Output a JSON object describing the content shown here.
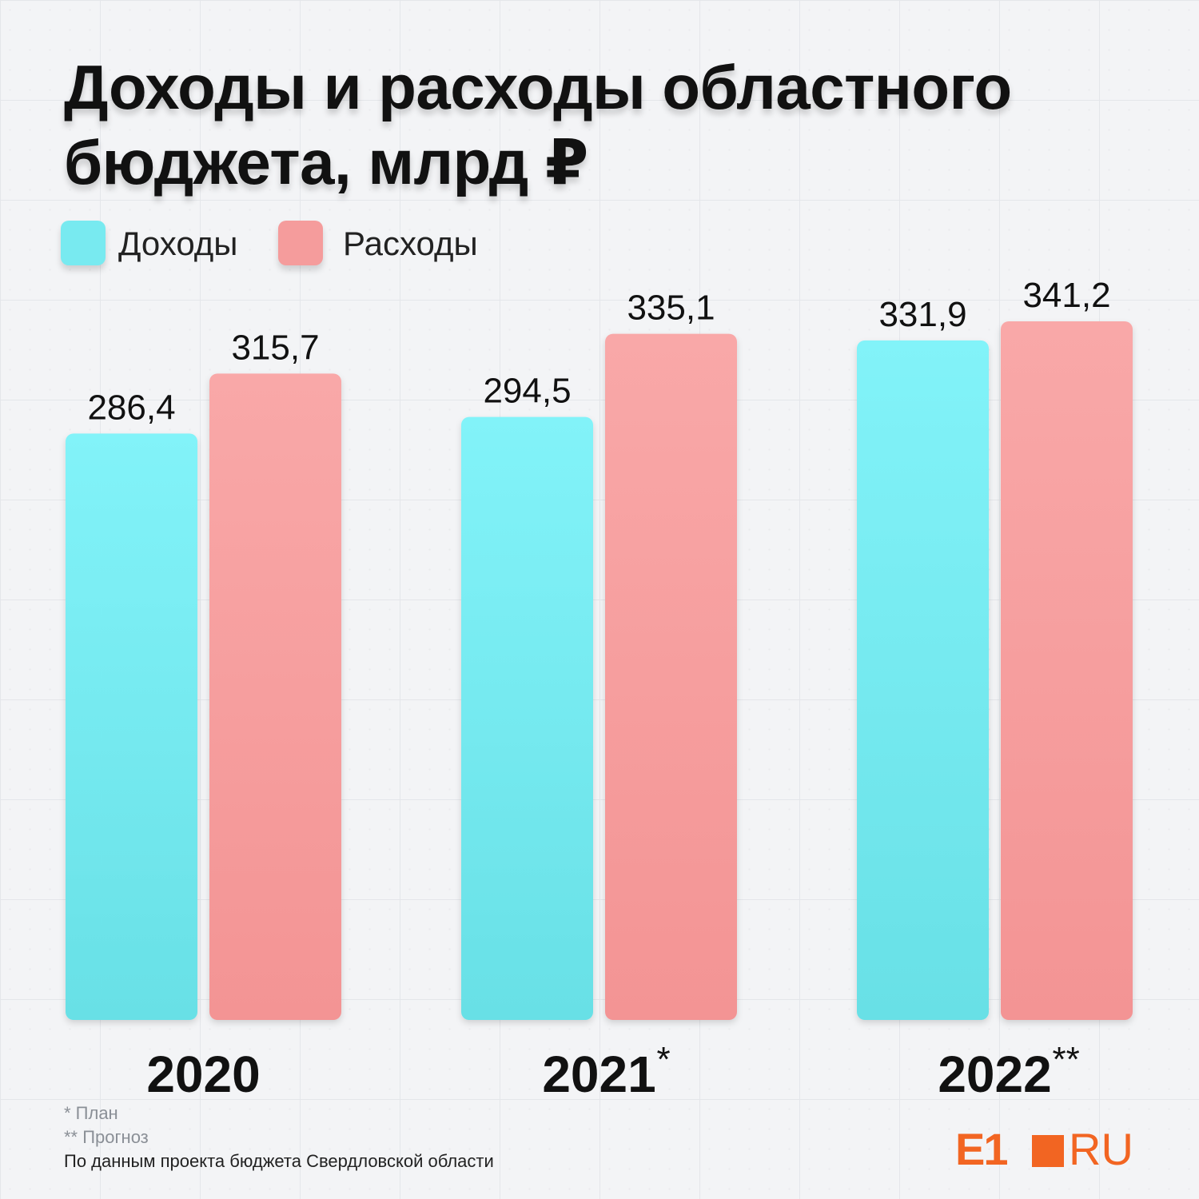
{
  "chart_data": {
    "type": "bar",
    "title": "Доходы и расходы областного бюджета, млрд ₽",
    "categories": [
      "2020",
      "2021",
      "2022"
    ],
    "category_marks": [
      "",
      "*",
      "**"
    ],
    "series": [
      {
        "name": "Доходы",
        "values": [
          286.4,
          294.5,
          331.9
        ],
        "labels": [
          "286,4",
          "294,5",
          "331,9"
        ],
        "color": "#78eaf0"
      },
      {
        "name": "Расходы",
        "values": [
          315.7,
          335.1,
          341.2
        ],
        "labels": [
          "315,7",
          "335,1",
          "341,2"
        ],
        "color": "#f59c9c"
      }
    ],
    "ylim": [
      0,
      341.2
    ],
    "legend_position": "top-left",
    "grid": false
  },
  "notes": {
    "plan": "* План",
    "forecast": "** Прогноз",
    "source": "По данным проекта бюджета Свердловской области"
  },
  "logo": {
    "left": "E1",
    "right": "RU",
    "color": "#f26522"
  }
}
